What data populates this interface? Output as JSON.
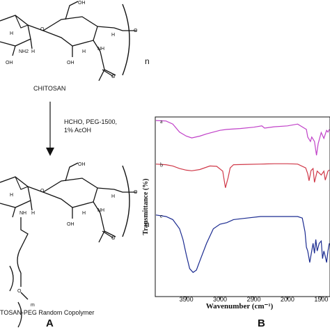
{
  "panel_a": {
    "top_label": "CHITOSAN",
    "bottom_label": "TOSAN-PEG Random Copolymer",
    "conditions": [
      "HCHO, PEG-1500,",
      "1% AcOH"
    ],
    "repeat_n": "n",
    "repeat_m": "m",
    "atoms": {
      "oh": "OH",
      "nh2": "NH2",
      "nh": "NH",
      "o": "O",
      "h": "H"
    },
    "panel_letter": "A"
  },
  "panel_b": {
    "panel_letter": "B",
    "chart_data": {
      "type": "line",
      "xlabel": "Wavenumber (cm⁻¹)",
      "ylabel": "Transmittance (%)",
      "x_ticks": [
        3500,
        3000,
        2500,
        2000,
        1500
      ],
      "x_tick_labels": [
        "3500",
        "3000",
        "2500",
        "2000",
        "1500"
      ],
      "xlim": [
        3950,
        1380
      ],
      "y_ticks_shown": false,
      "series": [
        {
          "name": "a",
          "color": "#c040c8",
          "x": [
            3950,
            3800,
            3700,
            3600,
            3500,
            3420,
            3300,
            3200,
            3000,
            2900,
            2700,
            2500,
            2380,
            2340,
            2200,
            2000,
            1850,
            1720,
            1700,
            1660,
            1640,
            1600,
            1570,
            1545,
            1500,
            1460,
            1420,
            1400,
            1380
          ],
          "y": [
            0.92,
            0.91,
            0.84,
            0.66,
            0.57,
            0.53,
            0.57,
            0.62,
            0.7,
            0.72,
            0.74,
            0.77,
            0.8,
            0.75,
            0.78,
            0.8,
            0.84,
            0.72,
            0.55,
            0.45,
            0.55,
            0.45,
            0.14,
            0.4,
            0.65,
            0.52,
            0.7,
            0.66,
            0.72
          ]
        },
        {
          "name": "b",
          "color": "#d03848",
          "x": [
            3950,
            3800,
            3700,
            3600,
            3500,
            3420,
            3300,
            3150,
            3050,
            2960,
            2920,
            2880,
            2850,
            2800,
            2600,
            2400,
            2200,
            2000,
            1850,
            1730,
            1700,
            1680,
            1650,
            1620,
            1600,
            1560,
            1530,
            1500,
            1460,
            1440,
            1400,
            1380
          ],
          "y": [
            0.92,
            0.9,
            0.86,
            0.78,
            0.73,
            0.71,
            0.75,
            0.86,
            0.85,
            0.7,
            0.18,
            0.5,
            0.8,
            0.9,
            0.91,
            0.92,
            0.93,
            0.93,
            0.92,
            0.8,
            0.62,
            0.4,
            0.72,
            0.78,
            0.35,
            0.7,
            0.64,
            0.58,
            0.7,
            0.42,
            0.7,
            0.74
          ]
        },
        {
          "name": "c",
          "color": "#1a2a90",
          "x": [
            3950,
            3800,
            3700,
            3600,
            3550,
            3500,
            3450,
            3400,
            3350,
            3300,
            3200,
            3100,
            3000,
            2900,
            2800,
            2600,
            2400,
            2200,
            2000,
            1850,
            1780,
            1740,
            1720,
            1700,
            1690,
            1670,
            1650,
            1620,
            1600,
            1580,
            1560,
            1530,
            1500,
            1480,
            1460,
            1440,
            1420,
            1400,
            1380
          ],
          "y": [
            0.92,
            0.9,
            0.86,
            0.74,
            0.6,
            0.4,
            0.22,
            0.17,
            0.2,
            0.32,
            0.55,
            0.74,
            0.8,
            0.82,
            0.86,
            0.88,
            0.9,
            0.9,
            0.9,
            0.9,
            0.88,
            0.7,
            0.5,
            0.45,
            0.4,
            0.3,
            0.4,
            0.55,
            0.42,
            0.6,
            0.45,
            0.55,
            0.58,
            0.35,
            0.45,
            0.38,
            0.3,
            0.45,
            0.55
          ]
        }
      ]
    }
  }
}
